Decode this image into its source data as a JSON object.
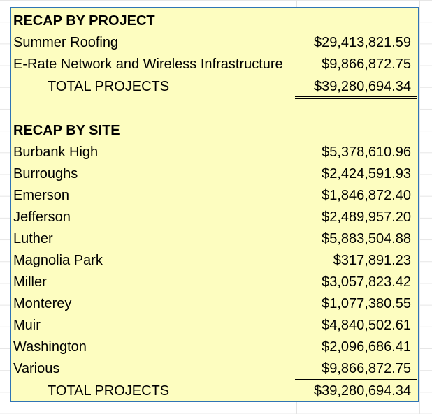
{
  "project_recap": {
    "heading": "RECAP BY PROJECT",
    "items": [
      {
        "label": "Summer Roofing",
        "value": "$29,413,821.59"
      },
      {
        "label": "E-Rate Network and Wireless Infrastructure",
        "value": "$9,866,872.75"
      }
    ],
    "total_label": "TOTAL PROJECTS",
    "total_value": "$39,280,694.34"
  },
  "site_recap": {
    "heading": "RECAP BY SITE",
    "items": [
      {
        "label": "Burbank High",
        "value": "$5,378,610.96"
      },
      {
        "label": "Burroughs",
        "value": "$2,424,591.93"
      },
      {
        "label": "Emerson",
        "value": "$1,846,872.40"
      },
      {
        "label": "Jefferson",
        "value": "$2,489,957.20"
      },
      {
        "label": "Luther",
        "value": "$5,883,504.88"
      },
      {
        "label": "Magnolia Park",
        "value": "$317,891.23"
      },
      {
        "label": "Miller",
        "value": "$3,057,823.42"
      },
      {
        "label": "Monterey",
        "value": "$1,077,380.55"
      },
      {
        "label": "Muir",
        "value": "$4,840,502.61"
      },
      {
        "label": "Washington",
        "value": "$2,096,686.41"
      },
      {
        "label": "Various",
        "value": "$9,866,872.75"
      }
    ],
    "total_label": "TOTAL PROJECTS",
    "total_value": "$39,280,694.34"
  }
}
